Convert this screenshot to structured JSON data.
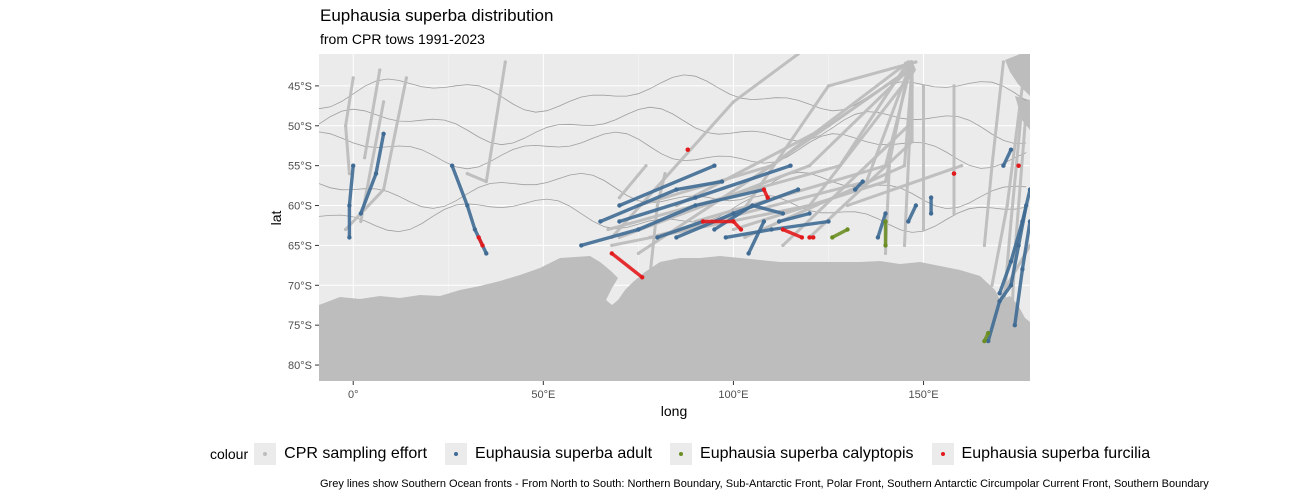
{
  "chart_data": {
    "type": "map-scatter",
    "title": "Euphausia superba distribution",
    "subtitle": "from CPR tows 1991-2023",
    "xlabel": "long",
    "ylabel": "lat",
    "xlim": [
      -9,
      178
    ],
    "ylim": [
      -82,
      -41
    ],
    "x_ticks": [
      0,
      50,
      100,
      150
    ],
    "x_tick_labels": [
      "0°",
      "50°E",
      "100°E",
      "150°E"
    ],
    "y_ticks": [
      -45,
      -50,
      -55,
      -60,
      -65,
      -70,
      -75,
      -80
    ],
    "y_tick_labels": [
      "45°S",
      "50°S",
      "55°S",
      "60°S",
      "65°S",
      "70°S",
      "75°S",
      "80°S"
    ],
    "grid": true,
    "legend_position": "bottom",
    "legend_title": "colour",
    "series": [
      {
        "name": "CPR sampling effort",
        "color": "#bdbdbd",
        "tracks": [
          [
            [
              -1,
              -56
            ],
            [
              -2,
              -50
            ],
            [
              0,
              -44
            ]
          ],
          [
            [
              3,
              -54
            ],
            [
              7,
              -43
            ]
          ],
          [
            [
              -2,
              -63
            ],
            [
              8,
              -58
            ],
            [
              14,
              -44
            ]
          ],
          [
            [
              30,
              -56
            ],
            [
              35,
              -57
            ],
            [
              40,
              -42
            ]
          ],
          [
            [
              2,
              -62
            ],
            [
              8,
              -47
            ]
          ],
          [
            [
              68,
              -64
            ],
            [
              100,
              -47
            ],
            [
              117,
              -41
            ]
          ],
          [
            [
              75,
              -66
            ],
            [
              110,
              -55
            ],
            [
              146,
              -42
            ]
          ],
          [
            [
              70,
              -64
            ],
            [
              120,
              -55
            ],
            [
              146,
              -43
            ]
          ],
          [
            [
              68,
              -65
            ],
            [
              120,
              -60
            ],
            [
              146,
              -44
            ]
          ],
          [
            [
              67,
              -63
            ],
            [
              128,
              -55
            ],
            [
              146,
              -42
            ]
          ],
          [
            [
              78,
              -64
            ],
            [
              135,
              -57
            ],
            [
              146,
              -43
            ]
          ],
          [
            [
              90,
              -62
            ],
            [
              140,
              -55
            ],
            [
              147,
              -42
            ]
          ],
          [
            [
              100,
              -63
            ],
            [
              140,
              -57
            ],
            [
              146,
              -43
            ]
          ],
          [
            [
              103,
              -64
            ],
            [
              145,
              -55
            ],
            [
              147,
              -43
            ]
          ],
          [
            [
              113,
              -65
            ],
            [
              146,
              -50
            ],
            [
              147,
              -42
            ]
          ],
          [
            [
              120,
              -64
            ],
            [
              147,
              -52
            ],
            [
              147,
              -43
            ]
          ],
          [
            [
              75,
              -60
            ],
            [
              110,
              -55
            ],
            [
              146,
              -43
            ]
          ],
          [
            [
              85,
              -60
            ],
            [
              125,
              -50
            ],
            [
              146,
              -43
            ]
          ],
          [
            [
              102,
              -61
            ],
            [
              125,
              -45
            ],
            [
              148,
              -42
            ]
          ],
          [
            [
              140,
              -66
            ],
            [
              141,
              -55
            ]
          ],
          [
            [
              145,
              -65
            ],
            [
              147,
              -45
            ]
          ],
          [
            [
              150,
              -63
            ],
            [
              150,
              -45
            ]
          ],
          [
            [
              158,
              -61
            ],
            [
              158,
              -45
            ]
          ],
          [
            [
              166,
              -65
            ],
            [
              168,
              -55
            ],
            [
              171,
              -42
            ]
          ],
          [
            [
              171,
              -73
            ],
            [
              173,
              -62
            ],
            [
              176,
              -47
            ]
          ],
          [
            [
              168,
              -70
            ],
            [
              172,
              -60
            ],
            [
              176,
              -45
            ]
          ],
          [
            [
              173,
              -76
            ],
            [
              174,
              -66
            ],
            [
              177,
              -48
            ]
          ],
          [
            [
              165,
              -77
            ],
            [
              172,
              -70
            ],
            [
              178,
              -65
            ]
          ],
          [
            [
              78,
              -69
            ],
            [
              80,
              -60
            ],
            [
              82,
              -56
            ]
          ],
          [
            [
              70,
              -59
            ],
            [
              77,
              -55
            ]
          ],
          [
            [
              130,
              -60
            ],
            [
              160,
              -55
            ]
          ]
        ]
      },
      {
        "name": "Euphausia superba adult",
        "color": "#3f6b94",
        "tracks": [
          [
            [
              -1,
              -64
            ],
            [
              -1,
              -60
            ],
            [
              0,
              -55
            ]
          ],
          [
            [
              2,
              -61
            ],
            [
              6,
              -56
            ],
            [
              8,
              -51
            ]
          ],
          [
            [
              26,
              -55
            ],
            [
              30,
              -60
            ],
            [
              32,
              -63
            ],
            [
              35,
              -66
            ]
          ],
          [
            [
              60,
              -65
            ],
            [
              75,
              -63
            ],
            [
              90,
              -60
            ],
            [
              108,
              -58
            ]
          ],
          [
            [
              65,
              -62
            ],
            [
              85,
              -58
            ],
            [
              97,
              -57
            ]
          ],
          [
            [
              70,
              -62
            ],
            [
              90,
              -59
            ],
            [
              115,
              -55
            ]
          ],
          [
            [
              85,
              -64
            ],
            [
              100,
              -61
            ],
            [
              117,
              -58
            ]
          ],
          [
            [
              95,
              -63
            ],
            [
              105,
              -60
            ],
            [
              113,
              -61
            ]
          ],
          [
            [
              98,
              -64
            ],
            [
              110,
              -63
            ],
            [
              125,
              -62
            ]
          ],
          [
            [
              70,
              -60
            ],
            [
              95,
              -55
            ]
          ],
          [
            [
              104,
              -66
            ],
            [
              108,
              -62
            ]
          ],
          [
            [
              80,
              -64
            ],
            [
              92,
              -62
            ]
          ],
          [
            [
              112,
              -62
            ],
            [
              120,
              -61
            ]
          ],
          [
            [
              138,
              -64
            ],
            [
              140,
              -61
            ]
          ],
          [
            [
              146,
              -62
            ],
            [
              148,
              -60
            ]
          ],
          [
            [
              152,
              -61
            ],
            [
              152,
              -59
            ]
          ],
          [
            [
              167,
              -77
            ],
            [
              170,
              -72
            ],
            [
              173,
              -70
            ],
            [
              175,
              -65
            ],
            [
              177,
              -60
            ]
          ],
          [
            [
              170,
              -71
            ],
            [
              173,
              -67
            ],
            [
              176,
              -62
            ],
            [
              178,
              -58
            ]
          ],
          [
            [
              174,
              -75
            ],
            [
              176,
              -68
            ],
            [
              178,
              -62
            ]
          ],
          [
            [
              171,
              -55
            ],
            [
              173,
              -53
            ]
          ],
          [
            [
              132,
              -58
            ],
            [
              134,
              -57
            ]
          ]
        ]
      },
      {
        "name": "Euphausia superba calyptopis",
        "color": "#6b8e23",
        "tracks": [
          [
            [
              140,
              -62
            ],
            [
              140,
              -65
            ]
          ],
          [
            [
              126,
              -64
            ],
            [
              130,
              -63
            ]
          ],
          [
            [
              166,
              -77
            ],
            [
              167,
              -76
            ]
          ]
        ]
      },
      {
        "name": "Euphausia superba furcilia",
        "color": "#e31a1c",
        "tracks": [
          [
            [
              68,
              -66
            ],
            [
              76,
              -69
            ]
          ],
          [
            [
              92,
              -62
            ],
            [
              100,
              -62
            ]
          ],
          [
            [
              100,
              -62
            ],
            [
              102,
              -63
            ]
          ],
          [
            [
              113,
              -63
            ],
            [
              118,
              -64
            ]
          ],
          [
            [
              108,
              -58
            ],
            [
              109,
              -59
            ]
          ],
          [
            [
              88,
              -53
            ],
            [
              88,
              -53
            ]
          ],
          [
            [
              158,
              -56
            ],
            [
              158,
              -56
            ]
          ],
          [
            [
              175,
              -55
            ],
            [
              175,
              -55
            ]
          ],
          [
            [
              33,
              -64
            ],
            [
              34,
              -65
            ]
          ],
          [
            [
              120,
              -64
            ],
            [
              121,
              -64
            ]
          ]
        ]
      }
    ]
  },
  "caption": "Grey lines show Southern Ocean fronts - From North to South: Northern Boundary, Sub-Antarctic Front, Polar Front, Southern Antarctic Circumpolar Current Front, Southern Boundary"
}
